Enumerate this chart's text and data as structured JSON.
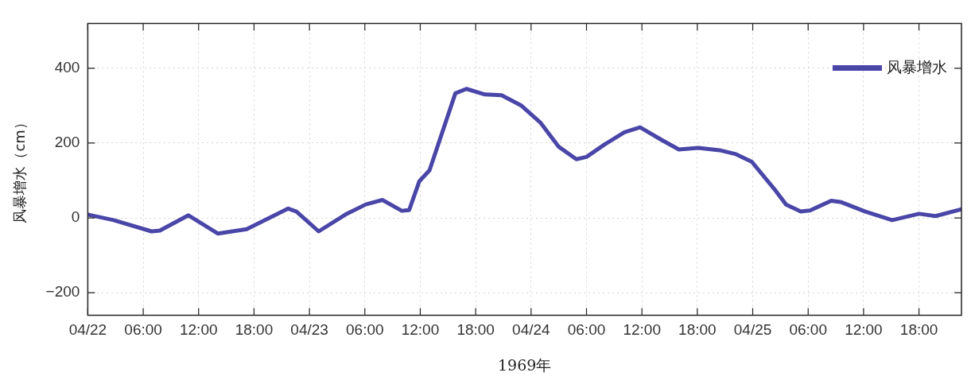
{
  "chart_data": {
    "type": "line",
    "xlabel": "1969年",
    "ylabel": "风暴增水（cm）",
    "xlim": [
      "1969-04-22T00:00",
      "1969-04-25T22:36"
    ],
    "ylim": [
      -260,
      520
    ],
    "xticks": [
      {
        "value": "1969-04-22T00:00",
        "label": "04/22"
      },
      {
        "value": "1969-04-22T06:00",
        "label": "06:00"
      },
      {
        "value": "1969-04-22T12:00",
        "label": "12:00"
      },
      {
        "value": "1969-04-22T18:00",
        "label": "18:00"
      },
      {
        "value": "1969-04-23T00:00",
        "label": "04/23"
      },
      {
        "value": "1969-04-23T06:00",
        "label": "06:00"
      },
      {
        "value": "1969-04-23T12:00",
        "label": "12:00"
      },
      {
        "value": "1969-04-23T18:00",
        "label": "18:00"
      },
      {
        "value": "1969-04-24T00:00",
        "label": "04/24"
      },
      {
        "value": "1969-04-24T06:00",
        "label": "06:00"
      },
      {
        "value": "1969-04-24T12:00",
        "label": "12:00"
      },
      {
        "value": "1969-04-24T18:00",
        "label": "18:00"
      },
      {
        "value": "1969-04-25T00:00",
        "label": "04/25"
      },
      {
        "value": "1969-04-25T06:00",
        "label": "06:00"
      },
      {
        "value": "1969-04-25T12:00",
        "label": "12:00"
      },
      {
        "value": "1969-04-25T18:00",
        "label": "18:00"
      }
    ],
    "yticks": [
      {
        "value": -200,
        "label": "−200"
      },
      0,
      200,
      400
    ],
    "grid": true,
    "legend": "top right",
    "marker": "none",
    "line_style": "solid",
    "series": [
      {
        "name": "风暴增水",
        "color": "#4a46a8",
        "x": [
          "1969-04-22T00:00",
          "1969-04-22T02:48",
          "1969-04-22T06:54",
          "1969-04-22T07:48",
          "1969-04-22T10:54",
          "1969-04-22T14:06",
          "1969-04-22T17:12",
          "1969-04-22T21:42",
          "1969-04-22T22:36",
          "1969-04-23T01:00",
          "1969-04-23T03:54",
          "1969-04-23T06:06",
          "1969-04-23T07:54",
          "1969-04-23T10:00",
          "1969-04-23T10:48",
          "1969-04-23T11:54",
          "1969-04-23T13:00",
          "1969-04-23T15:48",
          "1969-04-23T17:00",
          "1969-04-23T19:00",
          "1969-04-23T20:48",
          "1969-04-23T22:54",
          "1969-04-24T01:00",
          "1969-04-24T03:00",
          "1969-04-24T04:54",
          "1969-04-24T06:00",
          "1969-04-24T08:00",
          "1969-04-24T10:06",
          "1969-04-24T11:48",
          "1969-04-24T14:06",
          "1969-04-24T16:00",
          "1969-04-24T18:06",
          "1969-04-24T20:24",
          "1969-04-24T22:06",
          "1969-04-24T23:54",
          "1969-04-25T02:30",
          "1969-04-25T03:36",
          "1969-04-25T05:12",
          "1969-04-25T06:12",
          "1969-04-25T08:30",
          "1969-04-25T09:36",
          "1969-04-25T12:12",
          "1969-04-25T15:06",
          "1969-04-25T18:00",
          "1969-04-25T19:48",
          "1969-04-25T22:36"
        ],
        "values": [
          9,
          -6,
          -36,
          -34,
          7,
          -42,
          -30,
          25,
          17,
          -36,
          9,
          36,
          48,
          19,
          21,
          98,
          127,
          333,
          345,
          330,
          328,
          301,
          255,
          190,
          157,
          163,
          197,
          229,
          242,
          209,
          183,
          187,
          181,
          171,
          150,
          72,
          36,
          17,
          20,
          46,
          42,
          17,
          -6,
          11,
          5,
          23
        ]
      }
    ]
  }
}
